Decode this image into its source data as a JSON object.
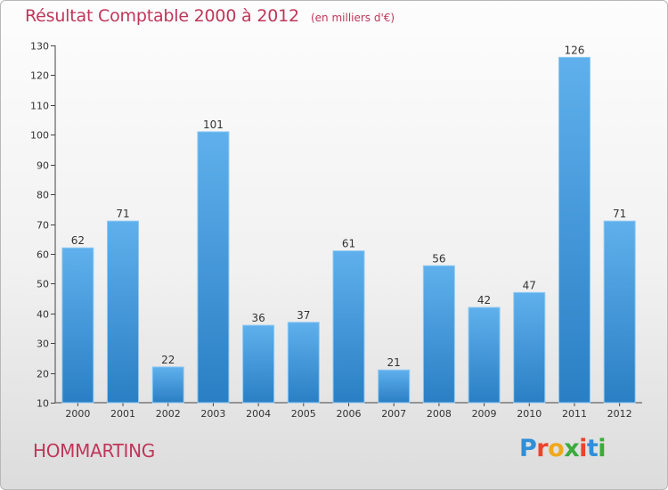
{
  "header": {
    "title": "Résultat Comptable 2000 à 2012",
    "unit": "(en milliers d'€)"
  },
  "footer": {
    "commune": "HOMMARTING",
    "logo_text": "Proxiti",
    "logo_colors": [
      "#2f8fd8",
      "#e8452c",
      "#f0a81c",
      "#3aab3c",
      "#e8452c",
      "#2f8fd8",
      "#3aab3c"
    ]
  },
  "chart_data": {
    "type": "bar",
    "categories": [
      "2000",
      "2001",
      "2002",
      "2003",
      "2004",
      "2005",
      "2006",
      "2007",
      "2008",
      "2009",
      "2010",
      "2011",
      "2012"
    ],
    "values": [
      62,
      71,
      22,
      101,
      36,
      37,
      61,
      21,
      56,
      42,
      47,
      126,
      71
    ],
    "title": "Résultat Comptable 2000 à 2012",
    "ylim": [
      10,
      130
    ],
    "yticks": [
      10,
      20,
      30,
      40,
      50,
      60,
      70,
      80,
      90,
      100,
      110,
      120,
      130
    ],
    "grid": false,
    "bar_color": "#3b95d9",
    "bar_color_light": "#5fb0ec",
    "data_labels": true
  }
}
